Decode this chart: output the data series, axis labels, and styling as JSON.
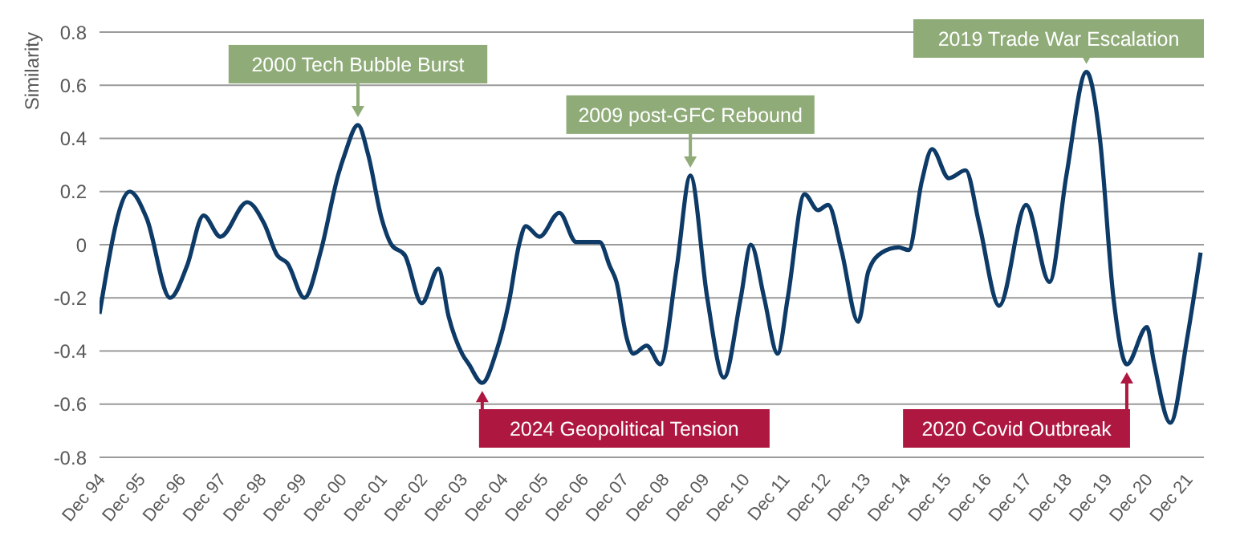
{
  "chart_data": {
    "type": "line",
    "ylabel": "Similarity",
    "x": [
      "1994-12",
      "1995-09",
      "1996-02",
      "1996-09",
      "1997-02",
      "1997-07",
      "1997-12",
      "1998-08",
      "1999-01",
      "1999-05",
      "1999-08",
      "2000-01",
      "2000-06",
      "2000-11",
      "2001-01",
      "2001-05",
      "2001-08",
      "2001-12",
      "2002-03",
      "2002-07",
      "2002-12",
      "2003-05",
      "2003-08",
      "2003-12",
      "2004-02",
      "2004-06",
      "2004-10",
      "2005-02",
      "2005-05",
      "2005-07",
      "2005-11",
      "2006-05",
      "2006-10",
      "2007-05",
      "2007-08",
      "2007-10",
      "2008-01",
      "2008-03",
      "2008-07",
      "2008-11",
      "2009-04",
      "2009-08",
      "2010-01",
      "2010-06",
      "2010-11",
      "2011-02",
      "2011-06",
      "2011-10",
      "2012-01",
      "2012-06",
      "2012-10",
      "2013-01",
      "2013-05",
      "2013-10",
      "2014-01",
      "2014-05",
      "2014-10",
      "2015-01",
      "2015-05",
      "2015-08",
      "2016-01",
      "2016-06",
      "2016-10",
      "2017-04",
      "2017-12",
      "2018-07",
      "2018-12",
      "2019-06",
      "2019-10",
      "2020-02",
      "2020-06",
      "2020-12",
      "2021-02",
      "2021-07",
      "2021-12",
      "2022-04"
    ],
    "series": [
      {
        "color": "#0d3a66",
        "values": [
          -0.26,
          0.2,
          0.1,
          -0.2,
          -0.08,
          0.11,
          0.03,
          0.16,
          0.08,
          -0.04,
          -0.07,
          -0.2,
          -0.02,
          0.26,
          0.34,
          0.45,
          0.34,
          0.1,
          0,
          -0.04,
          -0.22,
          -0.09,
          -0.27,
          -0.41,
          -0.45,
          -0.52,
          -0.41,
          -0.21,
          0,
          0.07,
          0.03,
          0.12,
          0.01,
          0.01,
          -0.08,
          -0.14,
          -0.35,
          -0.41,
          -0.38,
          -0.45,
          -0.08,
          0.26,
          -0.2,
          -0.5,
          -0.2,
          0,
          -0.2,
          -0.41,
          -0.2,
          0.19,
          0.13,
          0.15,
          -0.02,
          -0.29,
          -0.1,
          -0.03,
          -0.01,
          -0.02,
          0.24,
          0.36,
          0.25,
          0.28,
          0.08,
          -0.23,
          0.15,
          -0.14,
          0.26,
          0.65,
          0.4,
          -0.2,
          -0.45,
          -0.31,
          -0.44,
          -0.67,
          -0.35,
          -0.03
        ]
      }
    ],
    "xlim": [
      "1994-12",
      "2022-05"
    ],
    "xticks": [
      {
        "value": "1994-12",
        "label": "Dec 94"
      },
      {
        "value": "1995-12",
        "label": "Dec 95"
      },
      {
        "value": "1996-12",
        "label": "Dec 96"
      },
      {
        "value": "1997-12",
        "label": "Dec 97"
      },
      {
        "value": "1998-12",
        "label": "Dec 98"
      },
      {
        "value": "1999-12",
        "label": "Dec 99"
      },
      {
        "value": "2000-12",
        "label": "Dec 00"
      },
      {
        "value": "2001-12",
        "label": "Dec 01"
      },
      {
        "value": "2002-12",
        "label": "Dec 02"
      },
      {
        "value": "2003-12",
        "label": "Dec 03"
      },
      {
        "value": "2004-12",
        "label": "Dec 04"
      },
      {
        "value": "2005-12",
        "label": "Dec 05"
      },
      {
        "value": "2006-12",
        "label": "Dec 06"
      },
      {
        "value": "2007-12",
        "label": "Dec 07"
      },
      {
        "value": "2008-12",
        "label": "Dec 08"
      },
      {
        "value": "2009-12",
        "label": "Dec 09"
      },
      {
        "value": "2010-12",
        "label": "Dec 10"
      },
      {
        "value": "2011-12",
        "label": "Dec 11"
      },
      {
        "value": "2012-12",
        "label": "Dec 12"
      },
      {
        "value": "2013-12",
        "label": "Dec 13"
      },
      {
        "value": "2014-12",
        "label": "Dec 14"
      },
      {
        "value": "2015-12",
        "label": "Dec 15"
      },
      {
        "value": "2016-12",
        "label": "Dec 16"
      },
      {
        "value": "2017-12",
        "label": "Dec 17"
      },
      {
        "value": "2018-12",
        "label": "Dec 18"
      },
      {
        "value": "2019-12",
        "label": "Dec 19"
      },
      {
        "value": "2020-12",
        "label": "Dec 20"
      },
      {
        "value": "2021-12",
        "label": "Dec 21"
      }
    ],
    "ylim": [
      -0.8,
      0.8
    ],
    "yticks": [
      -0.8,
      -0.6,
      -0.4,
      -0.2,
      {
        "value": 0,
        "label": "0"
      },
      0.2,
      0.4,
      0.6,
      0.8
    ],
    "grid": "y",
    "legend": false,
    "marker": "none",
    "line_style": "solid",
    "annotations": [
      {
        "text": "2000 Tech Bubble Burst",
        "x": "2001-05",
        "y": 0.45
      },
      {
        "text": "2009 post-GFC Rebound",
        "x": "2009-08",
        "y": 0.26
      },
      {
        "text": "2019 Trade War Escalation",
        "x": "2019-06",
        "y": 0.65
      },
      {
        "text": "2024 Geopolitical Tension",
        "x": "2004-06",
        "y": -0.52
      },
      {
        "text": "2020 Covid Outbreak",
        "x": "2020-06",
        "y": -0.45
      }
    ]
  }
}
